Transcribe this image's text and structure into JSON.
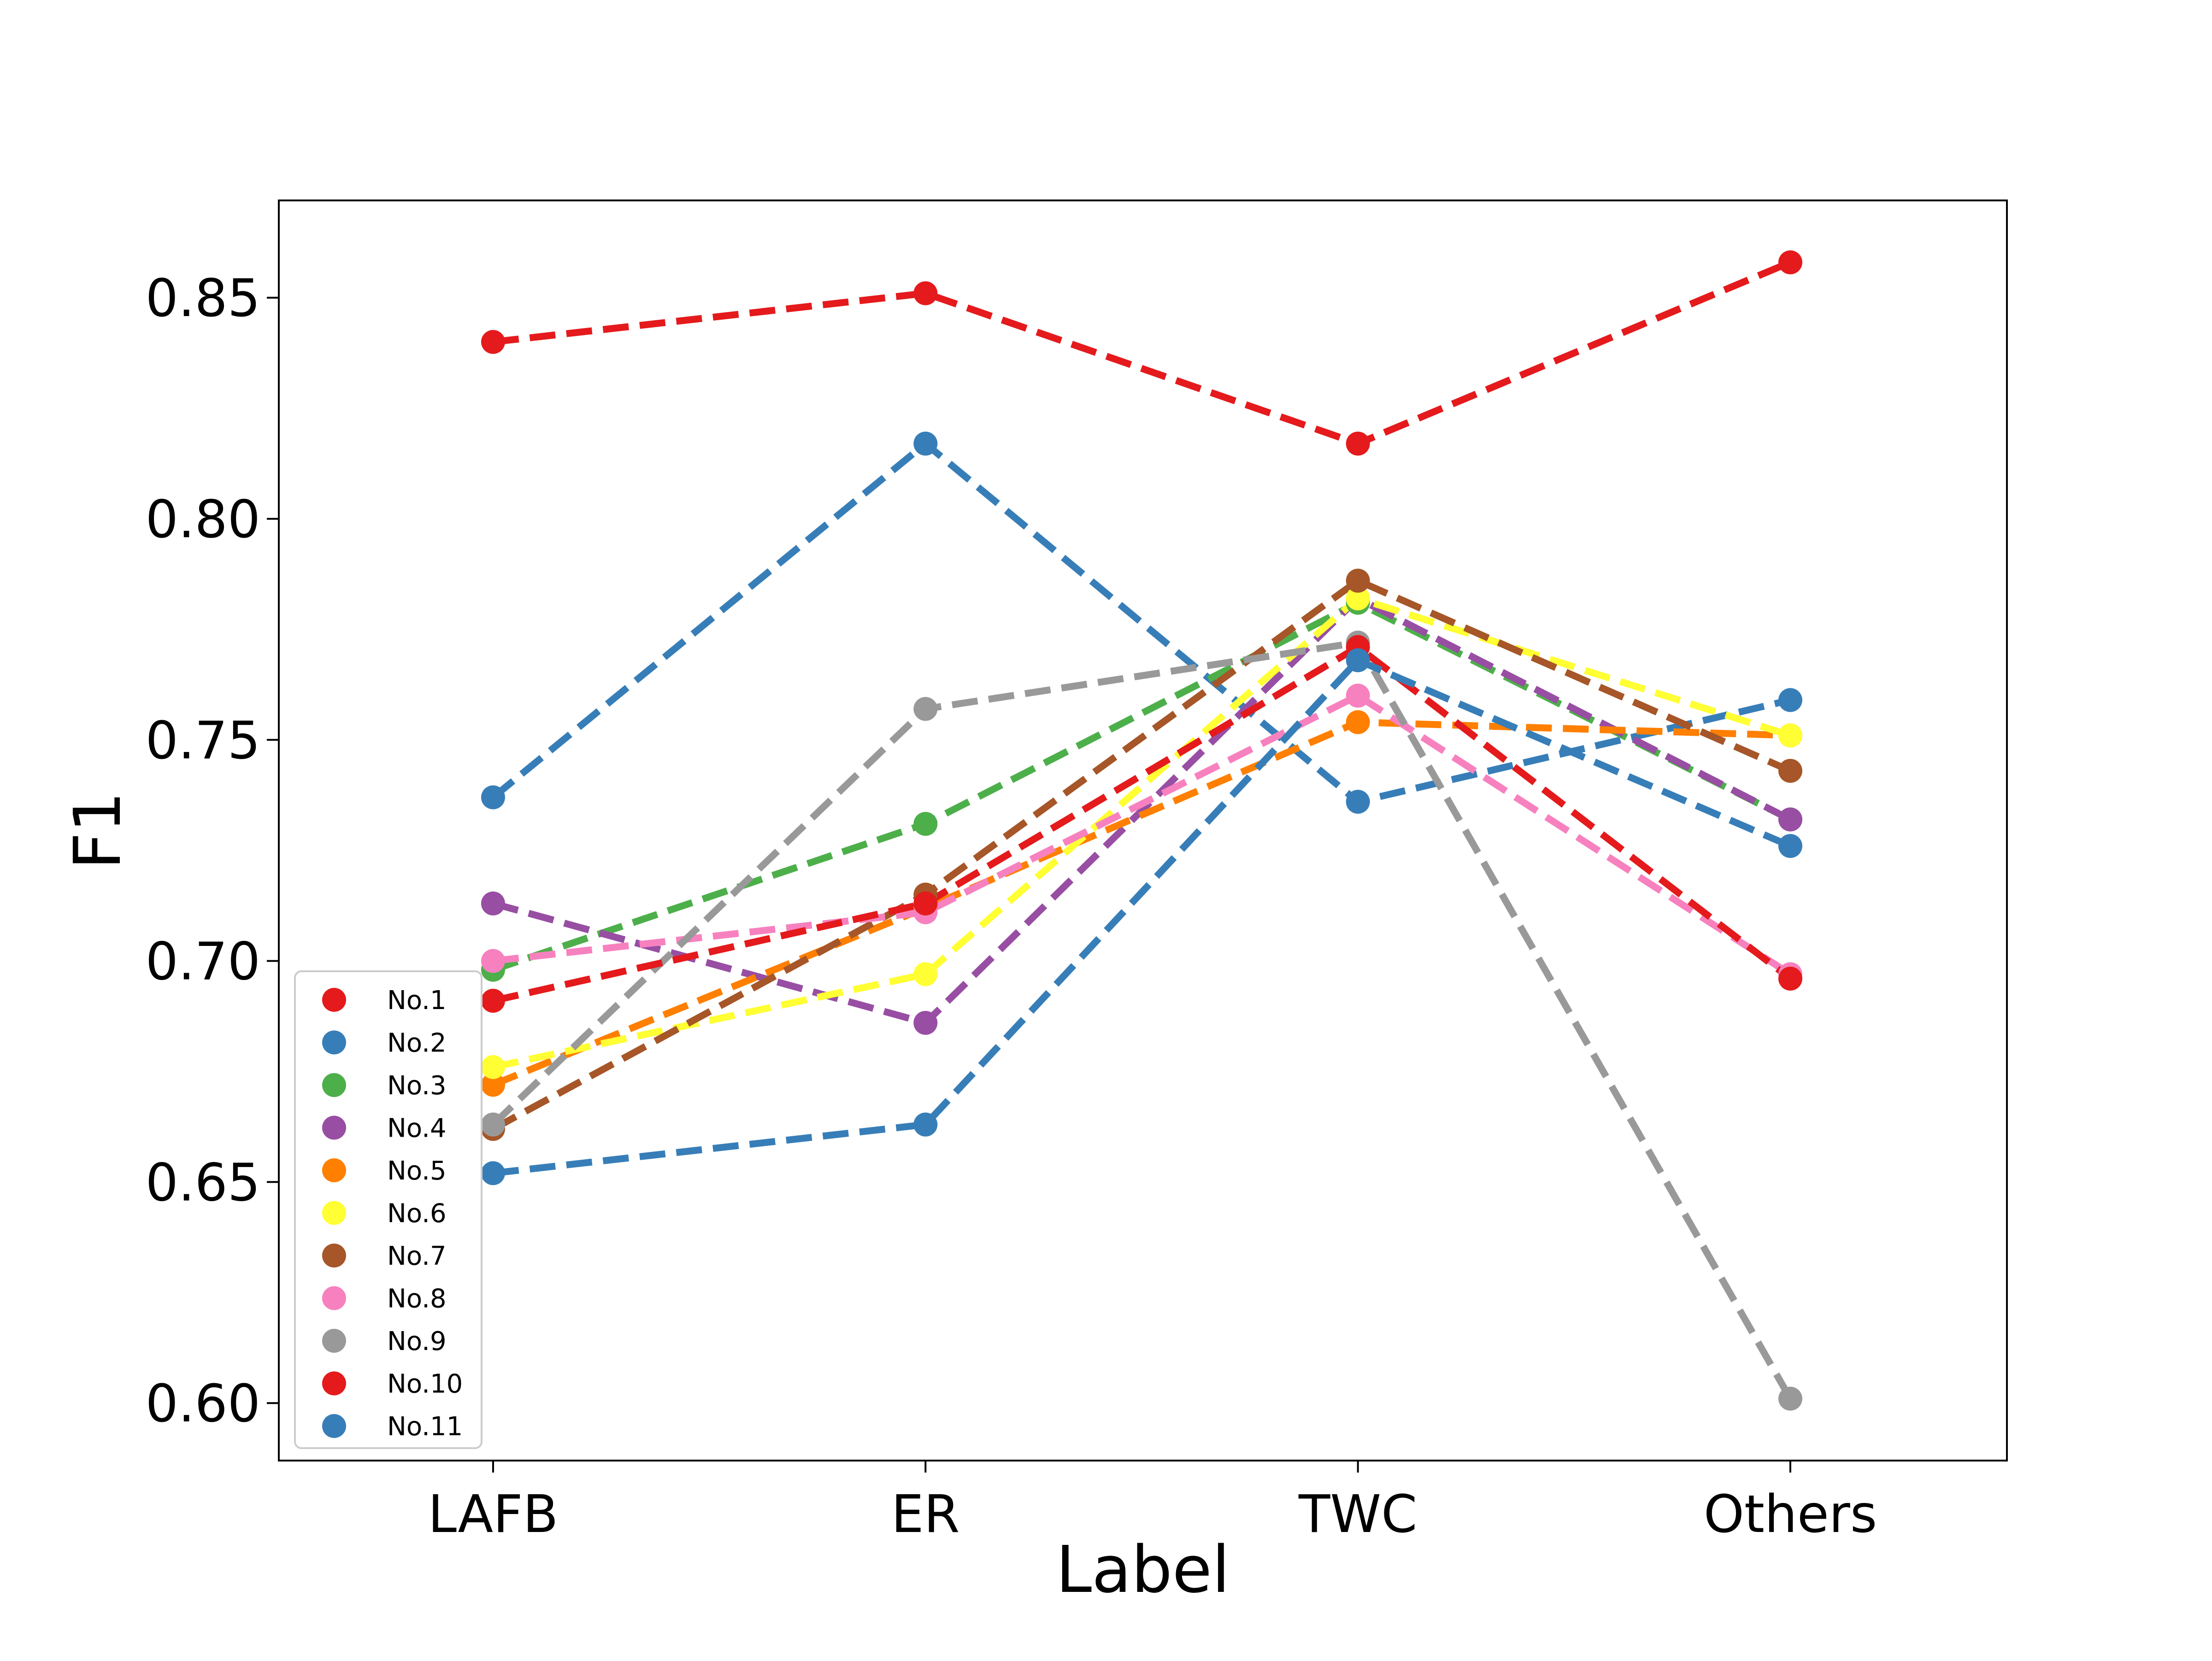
{
  "chart_data": {
    "type": "line",
    "title": "",
    "xlabel": "Label",
    "ylabel": "F1",
    "categories": [
      "LAFB",
      "ER",
      "TWC",
      "Others"
    ],
    "ylim": [
      0.587,
      0.872
    ],
    "yticks": [
      0.6,
      0.65,
      0.7,
      0.75,
      0.8,
      0.85
    ],
    "ytick_labels": [
      "0.60",
      "0.65",
      "0.70",
      "0.75",
      "0.80",
      "0.85"
    ],
    "grid": false,
    "legend_position": "lower-left",
    "line_style": "dashed",
    "marker": "circle",
    "series": [
      {
        "name": "No.1",
        "color": "#e41a1c",
        "values": [
          0.84,
          0.851,
          0.817,
          0.858
        ]
      },
      {
        "name": "No.2",
        "color": "#377eb8",
        "values": [
          0.737,
          0.817,
          0.736,
          0.759
        ]
      },
      {
        "name": "No.3",
        "color": "#4daf4a",
        "values": [
          0.698,
          0.731,
          0.781,
          0.732
        ]
      },
      {
        "name": "No.4",
        "color": "#984ea3",
        "values": [
          0.713,
          0.686,
          0.782,
          0.732
        ]
      },
      {
        "name": "No.5",
        "color": "#ff7f00",
        "values": [
          0.672,
          0.712,
          0.754,
          0.751
        ]
      },
      {
        "name": "No.6",
        "color": "#ffff33",
        "values": [
          0.676,
          0.697,
          0.782,
          0.751
        ]
      },
      {
        "name": "No.7",
        "color": "#a65628",
        "values": [
          0.662,
          0.715,
          0.786,
          0.743
        ]
      },
      {
        "name": "No.8",
        "color": "#f781bf",
        "values": [
          0.7,
          0.711,
          0.76,
          0.697
        ]
      },
      {
        "name": "No.9",
        "color": "#999999",
        "values": [
          0.663,
          0.757,
          0.772,
          0.601
        ]
      },
      {
        "name": "No.10",
        "color": "#e41a1c",
        "values": [
          0.691,
          0.713,
          0.771,
          0.696
        ]
      },
      {
        "name": "No.11",
        "color": "#377eb8",
        "values": [
          0.652,
          0.663,
          0.768,
          0.726
        ]
      }
    ]
  }
}
